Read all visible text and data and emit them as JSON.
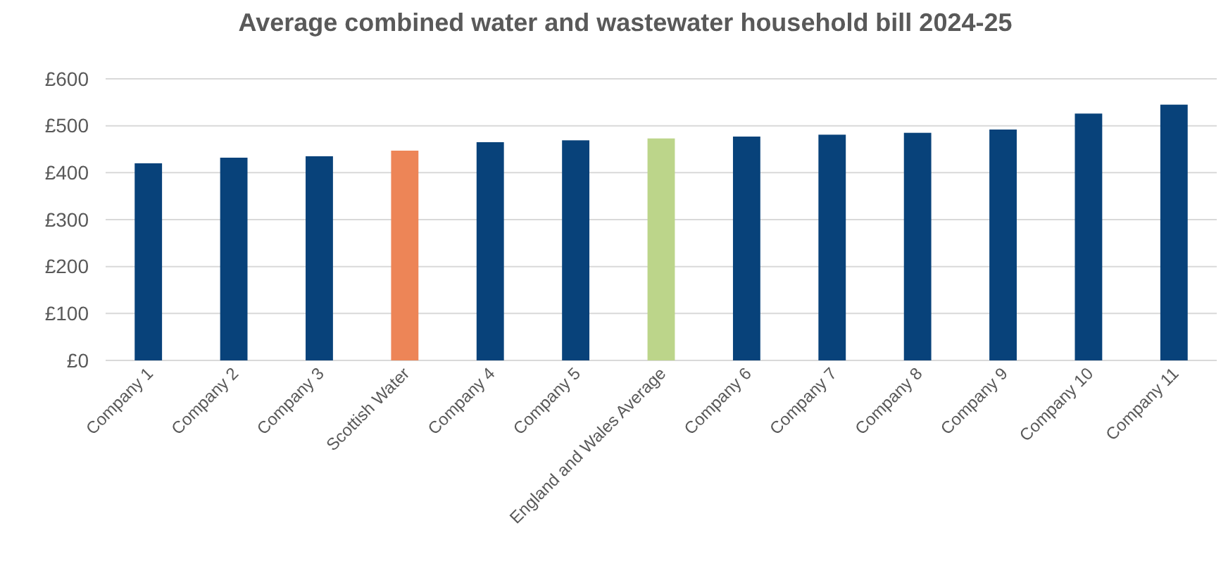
{
  "chart_data": {
    "type": "bar",
    "title": "Average combined water and wastewater household bill 2024-25",
    "categories": [
      "Company 1",
      "Company 2",
      "Company 3",
      "Scottish Water",
      "Company 4",
      "Company 5",
      "England and Wales Average",
      "Company 6",
      "Company 7",
      "Company 8",
      "Company 9",
      "Company 10",
      "Company 11"
    ],
    "values": [
      420,
      432,
      435,
      447,
      465,
      469,
      473,
      477,
      481,
      485,
      492,
      526,
      545
    ],
    "colors": [
      "#08427a",
      "#08427a",
      "#08427a",
      "#ed8557",
      "#08427a",
      "#08427a",
      "#bcd58a",
      "#08427a",
      "#08427a",
      "#08427a",
      "#08427a",
      "#08427a",
      "#08427a"
    ],
    "ylim": [
      0,
      600
    ],
    "yticks": [
      {
        "value": 0,
        "label": "£0"
      },
      {
        "value": 100,
        "label": "£100"
      },
      {
        "value": 200,
        "label": "£200"
      },
      {
        "value": 300,
        "label": "£300"
      },
      {
        "value": 400,
        "label": "£400"
      },
      {
        "value": 500,
        "label": "£500"
      },
      {
        "value": 600,
        "label": "£600"
      }
    ],
    "grid": true
  }
}
